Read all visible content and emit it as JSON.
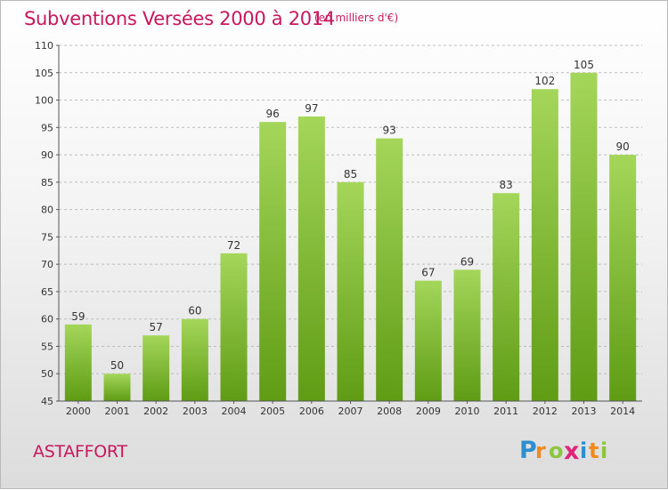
{
  "chart": {
    "title": "Subventions Versées 2000 à 2014",
    "subtitle": "(en milliers d'€)",
    "city": "ASTAFFORT",
    "logo_text": "Proxiti"
  },
  "colors": {
    "title": "#c8175e",
    "bar_light": "#a4d65a",
    "bar_dark": "#5f9c14",
    "grid": "#bdbdbd"
  },
  "chart_data": {
    "type": "bar",
    "categories": [
      "2000",
      "2001",
      "2002",
      "2003",
      "2004",
      "2005",
      "2006",
      "2007",
      "2008",
      "2009",
      "2010",
      "2011",
      "2012",
      "2013",
      "2014"
    ],
    "values": [
      59,
      50,
      57,
      60,
      72,
      96,
      97,
      85,
      93,
      67,
      69,
      83,
      102,
      105,
      90
    ],
    "title": "Subventions Versées 2000 à 2014",
    "xlabel": "",
    "ylabel": "",
    "ylim": [
      45,
      110
    ],
    "yticks": [
      45,
      50,
      55,
      60,
      65,
      70,
      75,
      80,
      85,
      90,
      95,
      100,
      105,
      110
    ],
    "grid": "horizontal dashed",
    "data_labels": true
  }
}
